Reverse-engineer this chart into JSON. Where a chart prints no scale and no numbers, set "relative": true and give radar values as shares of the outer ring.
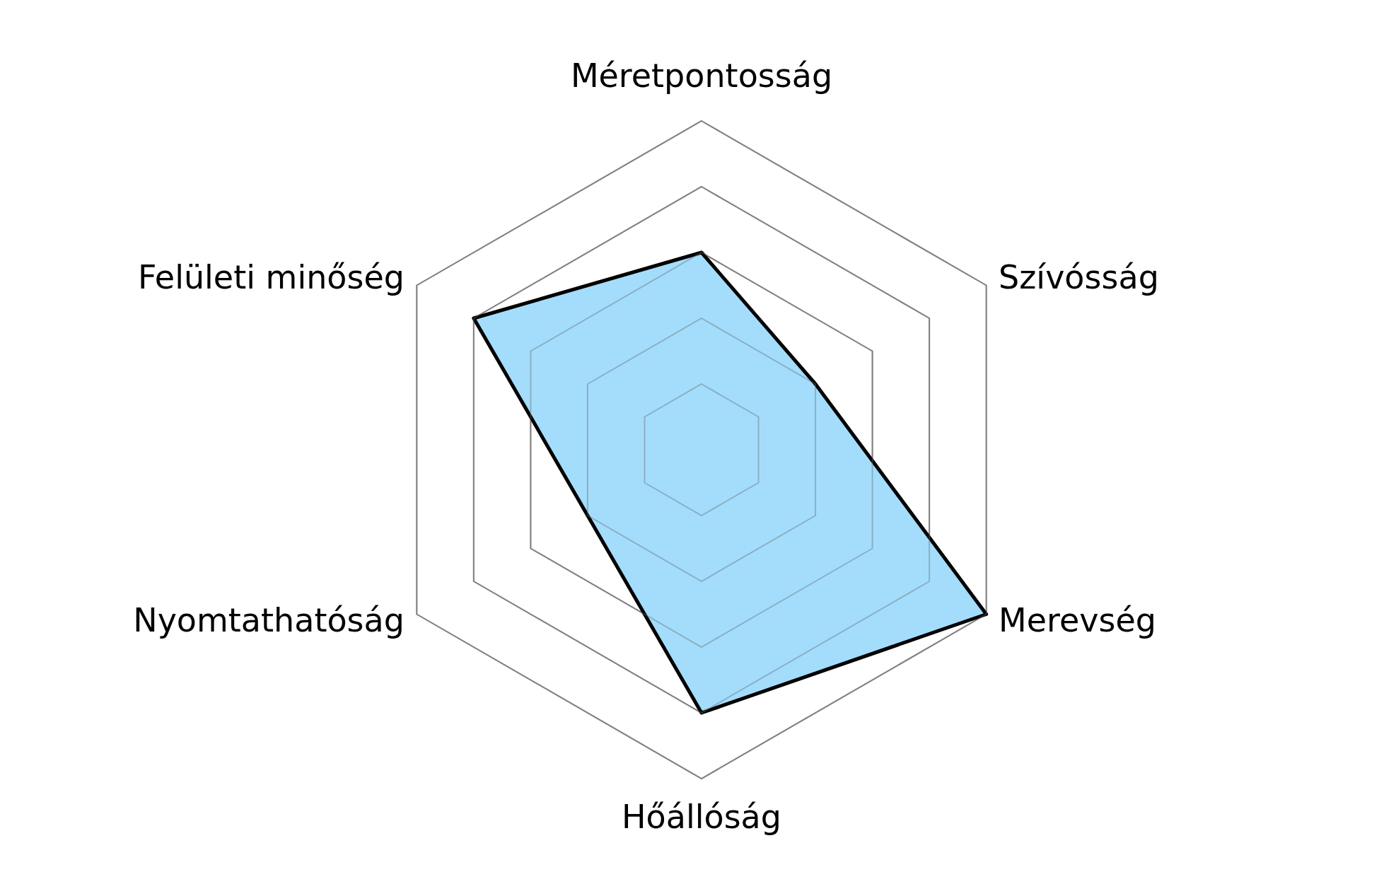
{
  "chart_data": {
    "type": "radar",
    "categories": [
      "Méretpontosság",
      "Szívósság",
      "Merevség",
      "Hőállóság",
      "Nyomtathatóság",
      "Felületi minőség"
    ],
    "series": [
      {
        "color": "#94d7fb",
        "values": [
          0.6,
          0.4,
          1.0,
          0.8,
          0.4,
          0.8
        ]
      }
    ],
    "relative": true,
    "grid": true
  }
}
